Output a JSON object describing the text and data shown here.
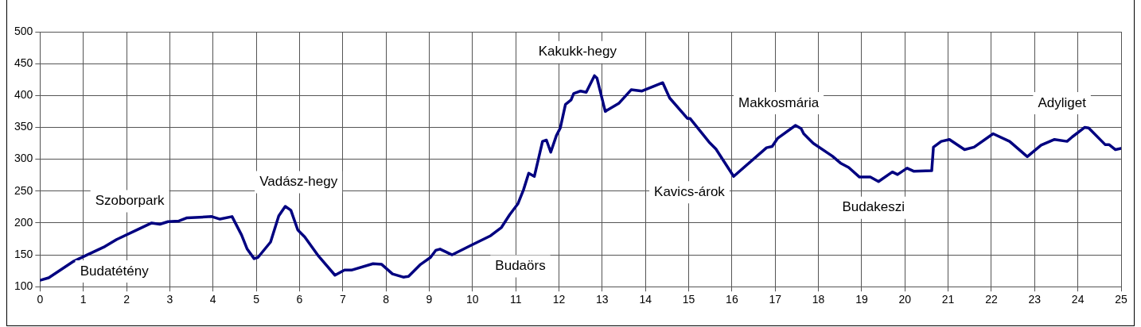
{
  "chart_data": {
    "type": "line",
    "xlim": [
      0,
      25
    ],
    "xticks": [
      0,
      1,
      2,
      3,
      4,
      5,
      6,
      7,
      8,
      9,
      10,
      11,
      12,
      13,
      14,
      15,
      16,
      17,
      18,
      19,
      20,
      21,
      22,
      23,
      24,
      25
    ],
    "ylim": [
      100,
      500
    ],
    "yticks": [
      100,
      150,
      200,
      250,
      300,
      350,
      400,
      450,
      500
    ],
    "grid": true,
    "series": [
      {
        "color": "#000080",
        "x": [
          0,
          0.2,
          0.78,
          1.03,
          1.5,
          1.77,
          2.27,
          2.58,
          2.77,
          2.96,
          3.21,
          3.4,
          3.97,
          4.16,
          4.44,
          4.66,
          4.79,
          4.95,
          5.04,
          5.33,
          5.52,
          5.67,
          5.8,
          5.96,
          6.12,
          6.44,
          6.82,
          7.04,
          7.2,
          7.7,
          7.9,
          8.15,
          8.4,
          8.52,
          8.8,
          9.03,
          9.15,
          9.25,
          9.53,
          9.97,
          10.42,
          10.67,
          10.86,
          11.05,
          11.18,
          11.3,
          11.43,
          11.62,
          11.71,
          11.81,
          11.94,
          12.03,
          12.15,
          12.28,
          12.34,
          12.5,
          12.63,
          12.82,
          12.88,
          13.07,
          13.39,
          13.67,
          13.92,
          14.4,
          14.46,
          14.56,
          14.97,
          15.03,
          15.47,
          15.63,
          16.04,
          16.8,
          16.93,
          17.06,
          17.47,
          17.6,
          17.66,
          17.88,
          18.32,
          18.51,
          18.7,
          18.95,
          19.2,
          19.39,
          19.71,
          19.83,
          20.05,
          20.21,
          20.62,
          20.66,
          20.84,
          21.03,
          21.38,
          21.6,
          22.04,
          22.42,
          22.83,
          23.15,
          23.46,
          23.75,
          23.87,
          24.16,
          24.25,
          24.63,
          24.72,
          24.87,
          25
        ],
        "values": [
          110,
          114,
          140,
          148,
          163,
          174,
          190,
          200,
          198,
          202,
          203,
          208,
          210,
          206,
          210,
          181,
          159,
          144,
          146,
          170,
          211,
          226,
          220,
          189,
          178,
          148,
          118,
          126,
          126,
          136,
          135,
          120,
          115,
          116,
          135,
          146,
          157,
          159,
          150,
          165,
          180,
          193,
          213,
          230,
          252,
          278,
          273,
          328,
          330,
          311,
          337,
          349,
          386,
          393,
          403,
          407,
          405,
          431,
          427,
          375,
          388,
          409,
          407,
          420,
          411,
          396,
          364,
          364,
          327,
          316,
          273,
          318,
          320,
          333,
          353,
          348,
          340,
          325,
          305,
          294,
          287,
          272,
          272,
          265,
          280,
          276,
          286,
          281,
          282,
          319,
          328,
          331,
          315,
          319,
          340,
          328,
          304,
          322,
          331,
          328,
          335,
          350,
          349,
          323,
          323,
          315,
          317
        ]
      }
    ],
    "annotations": [
      "Budatétény",
      "Szoborpark",
      "Vadász-hegy",
      "Budaörs",
      "Kakukk-hegy",
      "Kavics-árok",
      "Makkosmária",
      "Budakeszi",
      "Adyliget"
    ]
  }
}
